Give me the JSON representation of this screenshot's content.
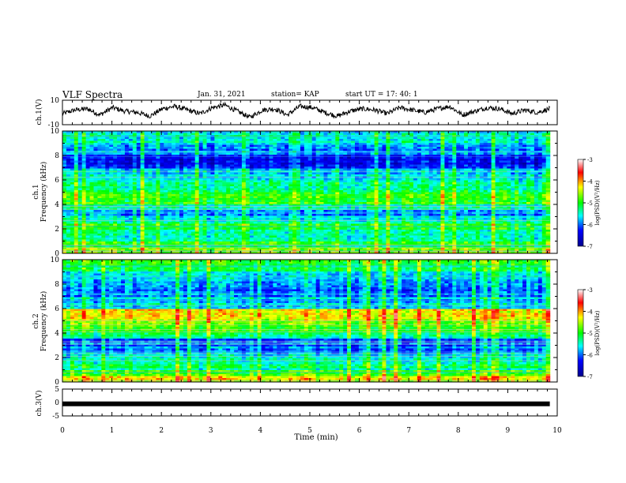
{
  "header": {
    "title": "VLF Spectra",
    "date": "Jan. 31, 2021",
    "station": "station= KAP",
    "start": "start  UT =   17: 40: 1"
  },
  "chart_data": [
    {
      "type": "line",
      "panel": "ch1-waveform",
      "ylabel": "ch.1(V)",
      "ylim": [
        -10,
        10
      ],
      "yticks": [
        "10",
        "-10"
      ],
      "xlim": [
        0,
        10
      ],
      "description_values_approx": [
        -1,
        2,
        3,
        -2,
        4,
        1,
        0,
        -3,
        3,
        5,
        2,
        -1,
        4,
        6,
        1,
        -4,
        2,
        3,
        -2,
        5,
        4,
        0,
        -3,
        1,
        3,
        2,
        -1,
        4,
        2,
        0,
        3,
        5,
        -2,
        1,
        4,
        3,
        -1,
        2,
        0,
        3
      ]
    },
    {
      "type": "heatmap",
      "panel": "ch1-spectrogram",
      "ylabel": "ch.1 Frequency (kHz)",
      "ylim": [
        0,
        10
      ],
      "yticks": [
        "0",
        "2",
        "4",
        "6",
        "8",
        "10"
      ],
      "xlim": [
        0,
        10
      ],
      "colorbar": {
        "label": "log(PSD)(V²/Hz)",
        "range": [
          -7,
          -3
        ],
        "ticks": [
          "-3",
          "-4",
          "-5",
          "-6",
          "-7"
        ]
      },
      "bands_log_psd": [
        {
          "f": [
            0,
            0.5
          ],
          "v": -4.6
        },
        {
          "f": [
            0.5,
            1.0
          ],
          "v": -5.0
        },
        {
          "f": [
            1.0,
            2.0
          ],
          "v": -5.3
        },
        {
          "f": [
            2.0,
            2.5
          ],
          "v": -5.1
        },
        {
          "f": [
            2.5,
            3.0
          ],
          "v": -5.4
        },
        {
          "f": [
            3.0,
            3.5
          ],
          "v": -5.8
        },
        {
          "f": [
            3.5,
            4.0
          ],
          "v": -5.5
        },
        {
          "f": [
            4.0,
            5.0
          ],
          "v": -4.9
        },
        {
          "f": [
            5.0,
            6.0
          ],
          "v": -5.3
        },
        {
          "f": [
            6.0,
            7.0
          ],
          "v": -5.7
        },
        {
          "f": [
            7.0,
            8.0
          ],
          "v": -6.3
        },
        {
          "f": [
            8.0,
            9.0
          ],
          "v": -5.9
        },
        {
          "f": [
            9.0,
            10.0
          ],
          "v": -5.5
        }
      ]
    },
    {
      "type": "heatmap",
      "panel": "ch2-spectrogram",
      "ylabel": "ch.2 Frequency (kHz)",
      "ylim": [
        0,
        10
      ],
      "yticks": [
        "0",
        "2",
        "4",
        "6",
        "8",
        "10"
      ],
      "xlim": [
        0,
        10
      ],
      "colorbar": {
        "label": "log(PSD)(V²/Hz)",
        "range": [
          -7,
          -3
        ],
        "ticks": [
          "-3",
          "-4",
          "-5",
          "-6",
          "-7"
        ]
      },
      "bands_log_psd": [
        {
          "f": [
            0,
            0.5
          ],
          "v": -4.4
        },
        {
          "f": [
            0.5,
            1.0
          ],
          "v": -5.0
        },
        {
          "f": [
            1.0,
            2.0
          ],
          "v": -5.3
        },
        {
          "f": [
            2.0,
            2.5
          ],
          "v": -5.6
        },
        {
          "f": [
            2.5,
            3.5
          ],
          "v": -6.0
        },
        {
          "f": [
            3.5,
            4.0
          ],
          "v": -5.4
        },
        {
          "f": [
            4.0,
            5.0
          ],
          "v": -4.8
        },
        {
          "f": [
            5.0,
            6.0
          ],
          "v": -4.3
        },
        {
          "f": [
            6.0,
            7.0
          ],
          "v": -5.7
        },
        {
          "f": [
            7.0,
            8.0
          ],
          "v": -5.9
        },
        {
          "f": [
            8.0,
            9.0
          ],
          "v": -5.7
        },
        {
          "f": [
            9.0,
            10.0
          ],
          "v": -5.1
        }
      ]
    },
    {
      "type": "line",
      "panel": "ch3-waveform",
      "ylabel": "ch.3(V)",
      "ylim": [
        -5,
        5
      ],
      "yticks": [
        "5",
        "0",
        "-5"
      ],
      "xlim": [
        0,
        10
      ],
      "constant_value": -0.5
    }
  ],
  "xaxis": {
    "label": "Time  (min)",
    "ticks": [
      "0",
      "1",
      "2",
      "3",
      "4",
      "5",
      "6",
      "7",
      "8",
      "9",
      "10"
    ],
    "range": [
      0,
      10
    ]
  },
  "data_end_min": 9.85
}
